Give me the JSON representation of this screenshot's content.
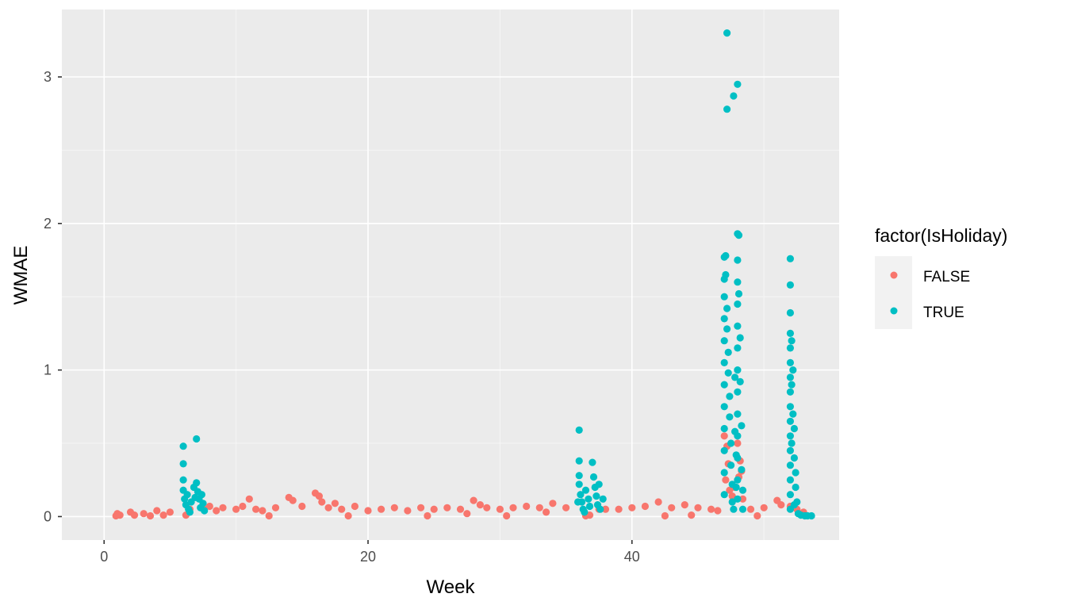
{
  "chart_data": {
    "type": "scatter",
    "title": "",
    "xlabel": "Week",
    "ylabel": "WMAE",
    "xlim": [
      -3.2,
      55.7
    ],
    "ylim": [
      -0.16,
      3.46
    ],
    "x_ticks": [
      0,
      20,
      40
    ],
    "y_ticks": [
      0,
      1,
      2,
      3
    ],
    "x_tick_labels": [
      "0",
      "20",
      "40"
    ],
    "y_tick_labels": [
      "0",
      "1",
      "2",
      "3"
    ],
    "grid": true,
    "legend": {
      "title": "factor(IsHoliday)",
      "position": "right"
    },
    "colors": {
      "panel": "#ebebeb",
      "grid_major": "#ffffff",
      "grid_minor": "#f6f6f6",
      "FALSE": "#f8766d",
      "TRUE": "#00bfc4"
    },
    "series": [
      {
        "name": "FALSE",
        "color": "#f8766d",
        "points": [
          [
            1,
            0.02
          ],
          [
            1.2,
            0.01
          ],
          [
            2,
            0.03
          ],
          [
            2.3,
            0.01
          ],
          [
            3,
            0.02
          ],
          [
            4,
            0.04
          ],
          [
            4.5,
            0.01
          ],
          [
            5,
            0.03
          ],
          [
            6.5,
            0.05
          ],
          [
            7.5,
            0.06
          ],
          [
            8,
            0.07
          ],
          [
            8.5,
            0.04
          ],
          [
            9,
            0.06
          ],
          [
            10,
            0.05
          ],
          [
            10.5,
            0.07
          ],
          [
            11,
            0.12
          ],
          [
            11.5,
            0.05
          ],
          [
            12,
            0.04
          ],
          [
            13,
            0.06
          ],
          [
            14,
            0.13
          ],
          [
            14.3,
            0.11
          ],
          [
            15,
            0.07
          ],
          [
            16,
            0.16
          ],
          [
            16.3,
            0.14
          ],
          [
            16.5,
            0.1
          ],
          [
            17,
            0.06
          ],
          [
            17.5,
            0.09
          ],
          [
            18,
            0.05
          ],
          [
            19,
            0.07
          ],
          [
            20,
            0.04
          ],
          [
            21,
            0.05
          ],
          [
            22,
            0.06
          ],
          [
            23,
            0.04
          ],
          [
            24,
            0.06
          ],
          [
            25,
            0.05
          ],
          [
            26,
            0.06
          ],
          [
            27,
            0.05
          ],
          [
            28,
            0.11
          ],
          [
            28.5,
            0.08
          ],
          [
            29,
            0.06
          ],
          [
            30,
            0.05
          ],
          [
            31,
            0.06
          ],
          [
            32,
            0.07
          ],
          [
            33,
            0.06
          ],
          [
            34,
            0.09
          ],
          [
            35,
            0.06
          ],
          [
            37.5,
            0.05
          ],
          [
            38,
            0.05
          ],
          [
            39,
            0.05
          ],
          [
            40,
            0.06
          ],
          [
            41,
            0.07
          ],
          [
            42,
            0.1
          ],
          [
            43,
            0.06
          ],
          [
            44,
            0.08
          ],
          [
            45,
            0.06
          ],
          [
            46,
            0.05
          ],
          [
            46.5,
            0.04
          ],
          [
            47,
            0.55
          ],
          [
            47.2,
            0.48
          ],
          [
            47.3,
            0.36
          ],
          [
            47.1,
            0.25
          ],
          [
            47.4,
            0.18
          ],
          [
            48,
            0.5
          ],
          [
            48.2,
            0.38
          ],
          [
            48.3,
            0.31
          ],
          [
            48.1,
            0.27
          ],
          [
            47.8,
            0.2
          ],
          [
            47.6,
            0.14
          ],
          [
            48.4,
            0.12
          ],
          [
            49,
            0.05
          ],
          [
            50,
            0.06
          ],
          [
            51,
            0.11
          ],
          [
            51.3,
            0.08
          ],
          [
            52,
            0.07
          ],
          [
            52.5,
            0.05
          ],
          [
            53,
            0.03
          ],
          [
            0.9,
            0.005
          ],
          [
            3.5,
            0.005
          ],
          [
            12.5,
            0.005
          ],
          [
            18.5,
            0.005
          ],
          [
            24.5,
            0.005
          ],
          [
            30.5,
            0.005
          ],
          [
            36.5,
            0.005
          ],
          [
            42.5,
            0.005
          ],
          [
            49.5,
            0.005
          ],
          [
            44.5,
            0.01
          ],
          [
            36.8,
            0.01
          ],
          [
            6.2,
            0.01
          ],
          [
            27.5,
            0.02
          ],
          [
            33.5,
            0.03
          ]
        ]
      },
      {
        "name": "TRUE",
        "color": "#00bfc4",
        "points": [
          [
            6,
            0.48
          ],
          [
            6,
            0.36
          ],
          [
            6,
            0.25
          ],
          [
            6,
            0.18
          ],
          [
            6.1,
            0.12
          ],
          [
            6.2,
            0.08
          ],
          [
            6.3,
            0.15
          ],
          [
            6.4,
            0.05
          ],
          [
            6.6,
            0.1
          ],
          [
            6.8,
            0.2
          ],
          [
            7,
            0.53
          ],
          [
            7,
            0.23
          ],
          [
            7.1,
            0.17
          ],
          [
            7.2,
            0.12
          ],
          [
            7.3,
            0.06
          ],
          [
            7.4,
            0.15
          ],
          [
            7.5,
            0.09
          ],
          [
            7.6,
            0.04
          ],
          [
            6.5,
            0.03
          ],
          [
            6.9,
            0.13
          ],
          [
            36,
            0.59
          ],
          [
            36,
            0.38
          ],
          [
            36,
            0.28
          ],
          [
            36,
            0.22
          ],
          [
            36.1,
            0.15
          ],
          [
            36.2,
            0.1
          ],
          [
            36.3,
            0.05
          ],
          [
            36.5,
            0.18
          ],
          [
            36.7,
            0.12
          ],
          [
            37,
            0.37
          ],
          [
            37.1,
            0.27
          ],
          [
            37.2,
            0.2
          ],
          [
            37.3,
            0.14
          ],
          [
            37.4,
            0.08
          ],
          [
            37.5,
            0.22
          ],
          [
            36.4,
            0.03
          ],
          [
            36.8,
            0.07
          ],
          [
            37.6,
            0.05
          ],
          [
            35.9,
            0.1
          ],
          [
            37.8,
            0.12
          ],
          [
            47,
            1.77
          ],
          [
            47,
            1.62
          ],
          [
            47,
            1.5
          ],
          [
            47,
            1.35
          ],
          [
            47,
            1.2
          ],
          [
            47,
            1.05
          ],
          [
            47,
            0.9
          ],
          [
            47,
            0.75
          ],
          [
            47,
            0.6
          ],
          [
            47,
            0.45
          ],
          [
            47,
            0.3
          ],
          [
            47,
            0.15
          ],
          [
            47.1,
            1.78
          ],
          [
            47.1,
            1.65
          ],
          [
            47.2,
            1.42
          ],
          [
            47.2,
            1.28
          ],
          [
            47.3,
            1.12
          ],
          [
            47.3,
            0.98
          ],
          [
            47.4,
            0.82
          ],
          [
            47.4,
            0.68
          ],
          [
            47.5,
            0.5
          ],
          [
            47.5,
            0.35
          ],
          [
            47.6,
            0.22
          ],
          [
            47.6,
            0.1
          ],
          [
            47.7,
            0.05
          ],
          [
            47.2,
            3.3
          ],
          [
            47.2,
            2.78
          ],
          [
            47.7,
            2.87
          ],
          [
            48,
            2.95
          ],
          [
            48,
            1.93
          ],
          [
            48,
            1.75
          ],
          [
            48,
            1.6
          ],
          [
            48,
            1.45
          ],
          [
            48,
            1.3
          ],
          [
            48,
            1.15
          ],
          [
            48,
            1.0
          ],
          [
            48,
            0.85
          ],
          [
            48,
            0.7
          ],
          [
            48,
            0.55
          ],
          [
            48,
            0.4
          ],
          [
            48,
            0.25
          ],
          [
            48,
            0.12
          ],
          [
            48.1,
            1.92
          ],
          [
            48.1,
            1.52
          ],
          [
            48.2,
            1.22
          ],
          [
            48.2,
            0.92
          ],
          [
            48.3,
            0.62
          ],
          [
            48.3,
            0.32
          ],
          [
            48.4,
            0.18
          ],
          [
            48.4,
            0.05
          ],
          [
            47.8,
            0.95
          ],
          [
            47.8,
            0.58
          ],
          [
            47.9,
            0.42
          ],
          [
            47.9,
            0.2
          ],
          [
            52,
            1.76
          ],
          [
            52,
            1.58
          ],
          [
            52,
            1.39
          ],
          [
            52,
            1.25
          ],
          [
            52,
            1.15
          ],
          [
            52,
            1.05
          ],
          [
            52,
            0.95
          ],
          [
            52,
            0.85
          ],
          [
            52,
            0.75
          ],
          [
            52,
            0.65
          ],
          [
            52,
            0.55
          ],
          [
            52,
            0.45
          ],
          [
            52,
            0.35
          ],
          [
            52,
            0.25
          ],
          [
            52,
            0.15
          ],
          [
            52,
            0.05
          ],
          [
            52.1,
            1.2
          ],
          [
            52.1,
            0.9
          ],
          [
            52.2,
            1.0
          ],
          [
            52.2,
            0.7
          ],
          [
            52.3,
            0.6
          ],
          [
            52.3,
            0.4
          ],
          [
            52.4,
            0.3
          ],
          [
            52.4,
            0.2
          ],
          [
            52.5,
            0.1
          ],
          [
            52.1,
            0.5
          ],
          [
            52.8,
            0.01
          ],
          [
            53.1,
            0.005
          ],
          [
            53.3,
            0.005
          ],
          [
            53.6,
            0.005
          ],
          [
            52.6,
            0.02
          ],
          [
            52.3,
            0.08
          ]
        ]
      }
    ]
  }
}
